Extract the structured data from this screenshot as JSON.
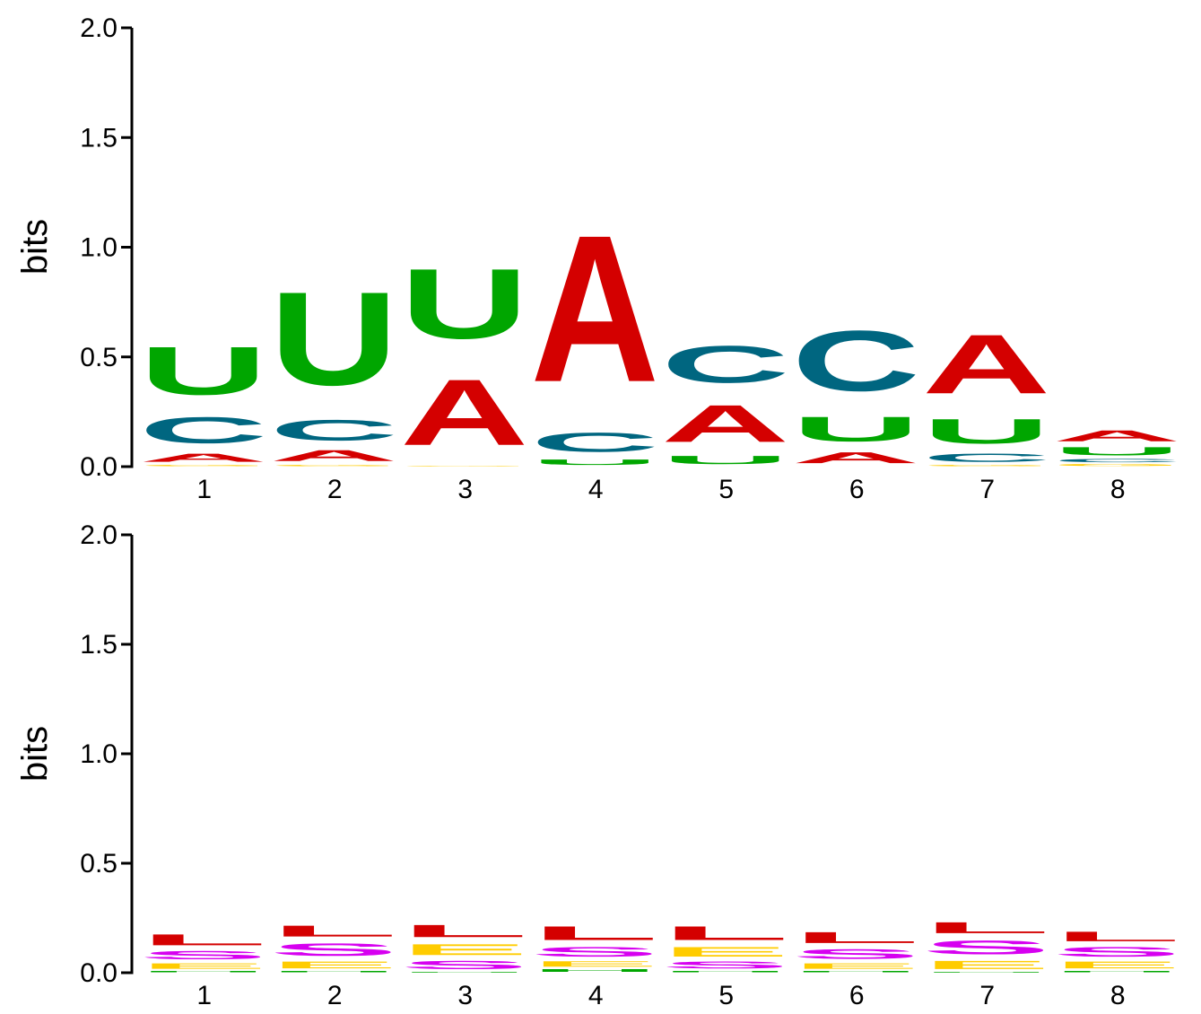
{
  "colors": {
    "A": "#d40000",
    "C": "#006680",
    "G": "#ffcc00",
    "U": "#00a600",
    "L": "#d40000",
    "S": "#d600f0",
    "E": "#ffcc00",
    "H": "#00a600"
  },
  "chart_data": [
    {
      "type": "sequence-logo",
      "ylabel": "bits",
      "ylim": [
        0,
        2
      ],
      "yticks": [
        "0.0",
        "0.5",
        "1.0",
        "1.5",
        "2.0"
      ],
      "positions": [
        "1",
        "2",
        "3",
        "4",
        "5",
        "6",
        "7",
        "8"
      ],
      "stacks": [
        [
          {
            "letter": "G",
            "bits": 0.01
          },
          {
            "letter": "A",
            "bits": 0.06
          },
          {
            "letter": "C",
            "bits": 0.19
          },
          {
            "letter": "U",
            "bits": 0.35
          }
        ],
        [
          {
            "letter": "G",
            "bits": 0.01
          },
          {
            "letter": "A",
            "bits": 0.08
          },
          {
            "letter": "C",
            "bits": 0.15
          },
          {
            "letter": "U",
            "bits": 0.68
          }
        ],
        [
          {
            "letter": "G",
            "bits": 0.005
          },
          {
            "letter": "A",
            "bits": 0.48
          },
          {
            "letter": "U",
            "bits": 0.51
          }
        ],
        [
          {
            "letter": "U",
            "bits": 0.04
          },
          {
            "letter": "C",
            "bits": 0.14
          },
          {
            "letter": "A",
            "bits": 1.07
          }
        ],
        [
          {
            "letter": "U",
            "bits": 0.06
          },
          {
            "letter": "A",
            "bits": 0.27
          },
          {
            "letter": "C",
            "bits": 0.27
          }
        ],
        [
          {
            "letter": "A",
            "bits": 0.08
          },
          {
            "letter": "U",
            "bits": 0.18
          },
          {
            "letter": "C",
            "bits": 0.44
          }
        ],
        [
          {
            "letter": "G",
            "bits": 0.01
          },
          {
            "letter": "C",
            "bits": 0.06
          },
          {
            "letter": "U",
            "bits": 0.18
          },
          {
            "letter": "A",
            "bits": 0.43
          }
        ],
        [
          {
            "letter": "G",
            "bits": 0.015
          },
          {
            "letter": "C",
            "bits": 0.025
          },
          {
            "letter": "U",
            "bits": 0.06
          },
          {
            "letter": "A",
            "bits": 0.08
          }
        ]
      ]
    },
    {
      "type": "sequence-logo",
      "ylabel": "bits",
      "ylim": [
        0,
        2
      ],
      "yticks": [
        "0.0",
        "0.5",
        "1.0",
        "1.5",
        "2.0"
      ],
      "positions": [
        "1",
        "2",
        "3",
        "4",
        "5",
        "6",
        "7",
        "8"
      ],
      "stacks": [
        [
          {
            "letter": "H",
            "bits": 0.01
          },
          {
            "letter": "E",
            "bits": 0.04
          },
          {
            "letter": "S",
            "bits": 0.06
          },
          {
            "letter": "L",
            "bits": 0.08
          }
        ],
        [
          {
            "letter": "H",
            "bits": 0.01
          },
          {
            "letter": "E",
            "bits": 0.05
          },
          {
            "letter": "S",
            "bits": 0.09
          },
          {
            "letter": "L",
            "bits": 0.08
          }
        ],
        [
          {
            "letter": "H",
            "bits": 0.005
          },
          {
            "letter": "S",
            "bits": 0.06
          },
          {
            "letter": "E",
            "bits": 0.08
          },
          {
            "letter": "L",
            "bits": 0.09
          }
        ],
        [
          {
            "letter": "H",
            "bits": 0.02
          },
          {
            "letter": "E",
            "bits": 0.04
          },
          {
            "letter": "S",
            "bits": 0.07
          },
          {
            "letter": "L",
            "bits": 0.1
          }
        ],
        [
          {
            "letter": "H",
            "bits": 0.01
          },
          {
            "letter": "S",
            "bits": 0.05
          },
          {
            "letter": "E",
            "bits": 0.07
          },
          {
            "letter": "L",
            "bits": 0.1
          }
        ],
        [
          {
            "letter": "H",
            "bits": 0.01
          },
          {
            "letter": "E",
            "bits": 0.04
          },
          {
            "letter": "S",
            "bits": 0.07
          },
          {
            "letter": "L",
            "bits": 0.08
          }
        ],
        [
          {
            "letter": "H",
            "bits": 0.005
          },
          {
            "letter": "E",
            "bits": 0.06
          },
          {
            "letter": "S",
            "bits": 0.1
          },
          {
            "letter": "L",
            "bits": 0.08
          }
        ],
        [
          {
            "letter": "H",
            "bits": 0.01
          },
          {
            "letter": "E",
            "bits": 0.05
          },
          {
            "letter": "S",
            "bits": 0.07
          },
          {
            "letter": "L",
            "bits": 0.07
          }
        ]
      ]
    }
  ]
}
